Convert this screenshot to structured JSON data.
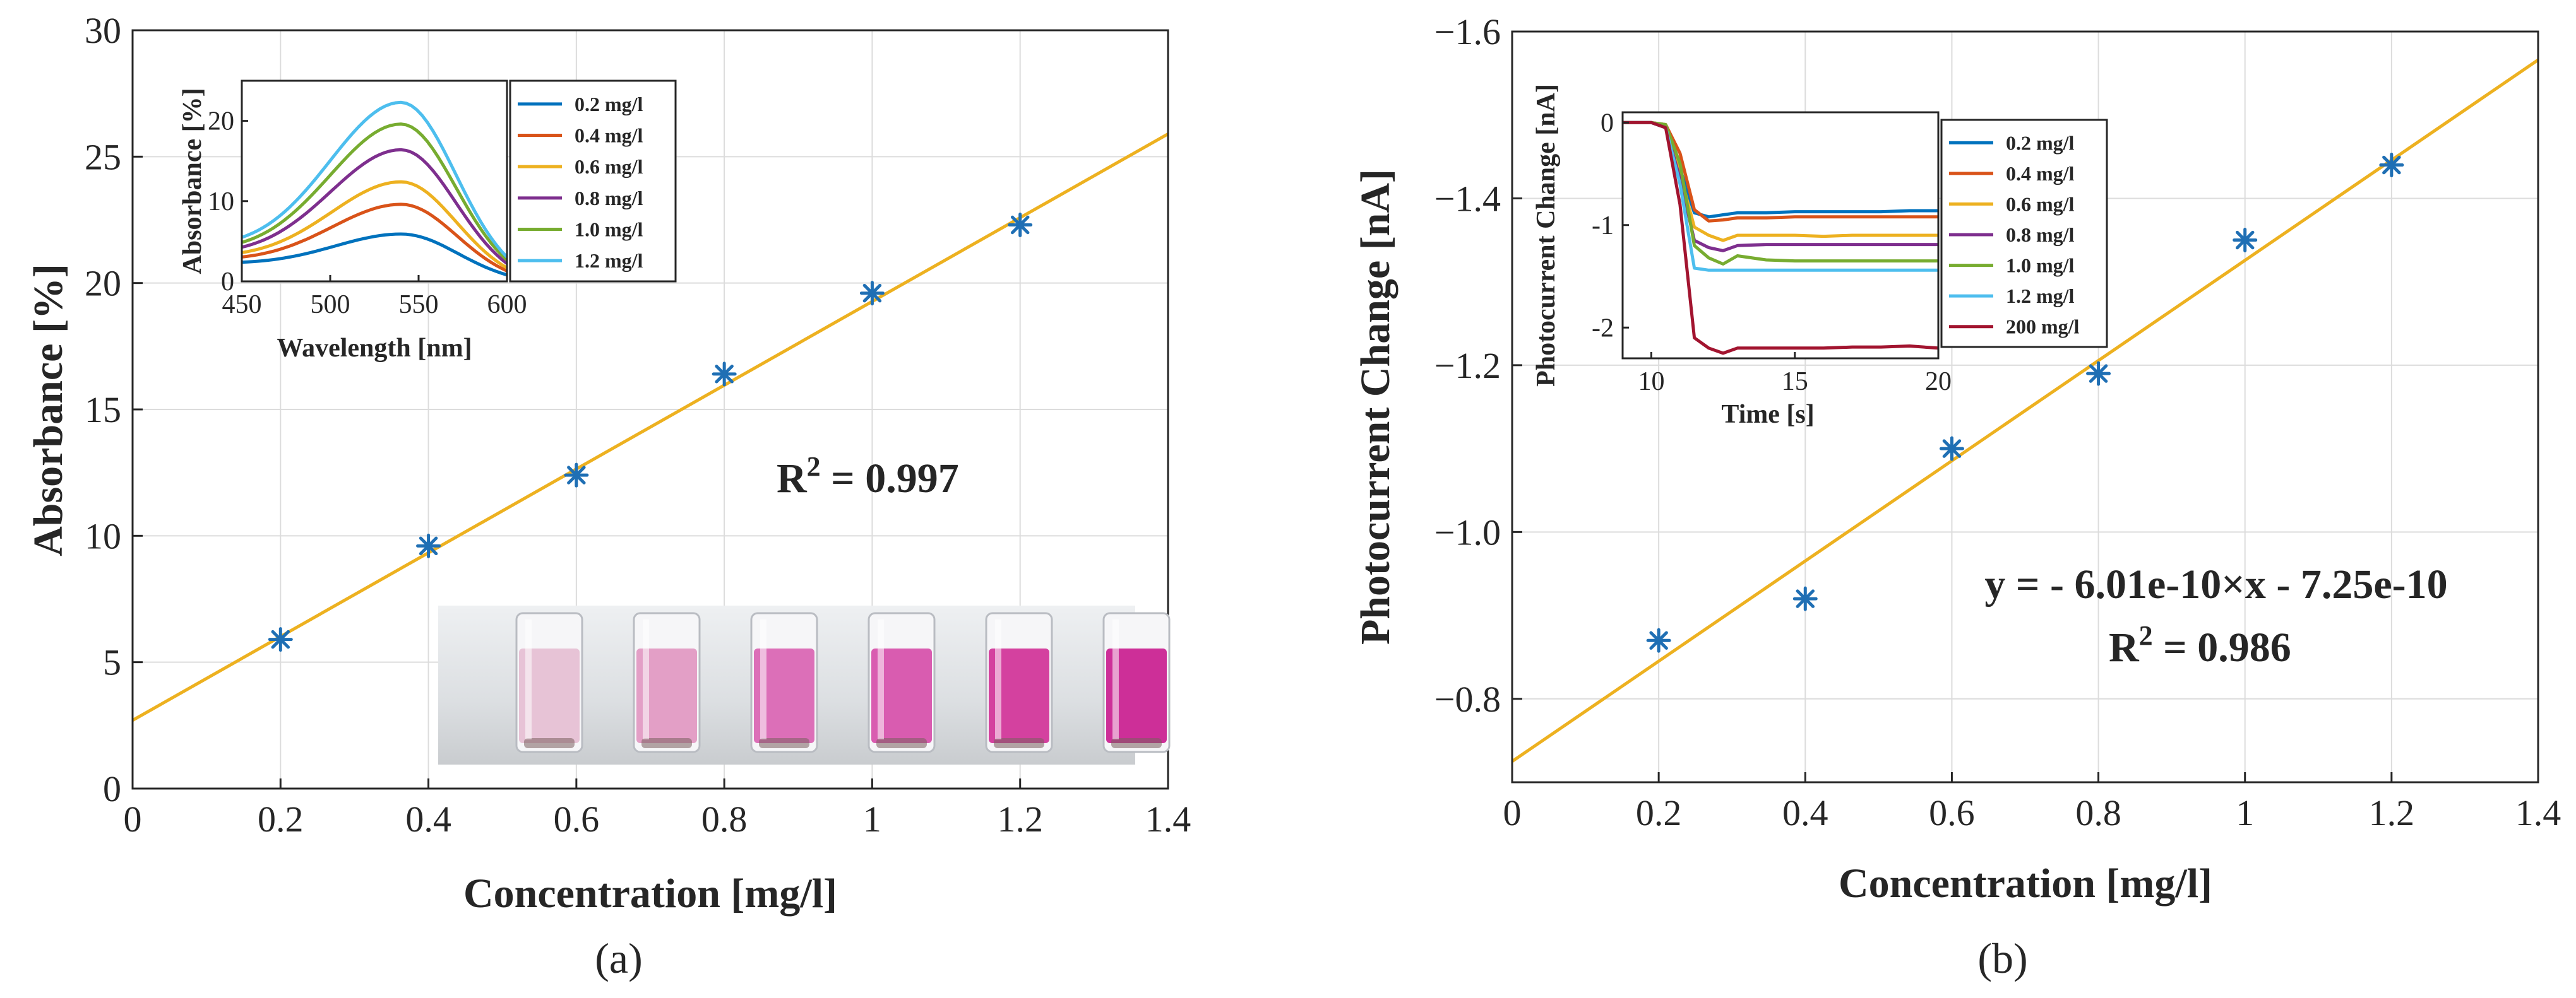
{
  "colors": {
    "marker": "#1f6fb4",
    "fit_line": "#edb120",
    "grid": "#dcdcdc",
    "axis": "#262626",
    "series": [
      "#0072bd",
      "#d95319",
      "#edb120",
      "#7e2f8e",
      "#77ac30",
      "#4dbeee",
      "#a2142f"
    ]
  },
  "chart_data": [
    {
      "id": "a",
      "type": "scatter",
      "subplot_label": "(a)",
      "xlabel": "Concentration [mg/l]",
      "ylabel": "Absorbance [%]",
      "xlim": [
        0,
        1.4
      ],
      "ylim": [
        0,
        30
      ],
      "xticks": [
        0,
        0.2,
        0.4,
        0.6,
        0.8,
        1,
        1.2,
        1.4
      ],
      "xtick_labels": [
        "0",
        "0.2",
        "0.4",
        "0.6",
        "0.8",
        "1",
        "1.2",
        "1.4"
      ],
      "yticks": [
        0,
        5,
        10,
        15,
        20,
        25,
        30
      ],
      "ytick_labels": [
        "0",
        "5",
        "10",
        "15",
        "20",
        "25",
        "30"
      ],
      "grid": true,
      "marker": "asterisk",
      "points": {
        "x": [
          0.2,
          0.4,
          0.6,
          0.8,
          1.0,
          1.2
        ],
        "y": [
          5.9,
          9.6,
          12.4,
          16.4,
          19.6,
          22.3
        ]
      },
      "fit": {
        "x": [
          0,
          1.4
        ],
        "y": [
          2.7,
          25.9
        ]
      },
      "annotation": {
        "text": "R",
        "sup": "2",
        "tail": " = 0.997"
      },
      "photo": {
        "description": "six vials of pink solutions of increasing concentration"
      },
      "inset": {
        "type": "line",
        "xlabel": "Wavelength [nm]",
        "ylabel": "Absorbance [%]",
        "xlim": [
          450,
          600
        ],
        "ylim": [
          0,
          25
        ],
        "xticks": [
          450,
          500,
          550,
          600
        ],
        "xtick_labels": [
          "450",
          "500",
          "550",
          "600"
        ],
        "yticks": [
          0,
          10,
          20
        ],
        "ytick_labels": [
          "0",
          "10",
          "20"
        ],
        "peak_nm": 540,
        "base_at_450": [
          2.0,
          2.3,
          2.6,
          2.9,
          3.2,
          3.6
        ],
        "series": [
          {
            "name": "0.2 mg/l",
            "peak": 5.9
          },
          {
            "name": "0.4 mg/l",
            "peak": 9.6
          },
          {
            "name": "0.6 mg/l",
            "peak": 12.4
          },
          {
            "name": "0.8 mg/l",
            "peak": 16.4
          },
          {
            "name": "1.0 mg/l",
            "peak": 19.6
          },
          {
            "name": "1.2 mg/l",
            "peak": 22.3
          }
        ]
      }
    },
    {
      "id": "b",
      "type": "scatter",
      "subplot_label": "(b)",
      "xlabel": "Concentration [mg/l]",
      "ylabel": "Photocurrent Change [nA]",
      "xlim": [
        0,
        1.4
      ],
      "ylim": [
        -0.7,
        -1.6
      ],
      "xticks": [
        0,
        0.2,
        0.4,
        0.6,
        0.8,
        1,
        1.2,
        1.4
      ],
      "xtick_labels": [
        "0",
        "0.2",
        "0.4",
        "0.6",
        "0.8",
        "1",
        "1.2",
        "1.4"
      ],
      "yticks": [
        -0.8,
        -1.0,
        -1.2,
        -1.4,
        -1.6
      ],
      "ytick_labels": [
        "−0.8",
        "−1.0",
        "−1.2",
        "−1.4",
        "−1.6"
      ],
      "grid": true,
      "marker": "asterisk",
      "points": {
        "x": [
          0.2,
          0.4,
          0.6,
          0.8,
          1.0,
          1.2
        ],
        "y": [
          -0.87,
          -0.92,
          -1.1,
          -1.19,
          -1.35,
          -1.44
        ]
      },
      "fit": {
        "x": [
          0,
          1.4
        ],
        "y": [
          -0.725,
          -1.566
        ]
      },
      "annotation": {
        "equation": "y = - 6.01e-10×x - 7.25e-10",
        "r_text": "R",
        "r_sup": "2",
        "r_tail": " = 0.986"
      },
      "inset": {
        "type": "line",
        "xlabel": "Time [s]",
        "ylabel": "Photocurrent Change [nA]",
        "xlim": [
          9,
          20
        ],
        "ylim": [
          -2.3,
          0.1
        ],
        "xticks": [
          10,
          15,
          20
        ],
        "xtick_labels": [
          "10",
          "15",
          "20"
        ],
        "yticks": [
          0,
          -1,
          -2
        ],
        "ytick_labels": [
          "0",
          "-1",
          "-2"
        ],
        "x": [
          9,
          10,
          10.5,
          11,
          11.5,
          12,
          12.5,
          13,
          14,
          15,
          16,
          17,
          18,
          19,
          20
        ],
        "series": [
          {
            "name": "0.2 mg/l",
            "values": [
              0,
              0,
              -0.05,
              -0.45,
              -0.88,
              -0.92,
              -0.9,
              -0.88,
              -0.88,
              -0.87,
              -0.87,
              -0.87,
              -0.87,
              -0.86,
              -0.86
            ]
          },
          {
            "name": "0.4 mg/l",
            "values": [
              0,
              0,
              -0.02,
              -0.3,
              -0.85,
              -0.96,
              -0.95,
              -0.93,
              -0.93,
              -0.92,
              -0.92,
              -0.92,
              -0.92,
              -0.92,
              -0.92
            ]
          },
          {
            "name": "0.6 mg/l",
            "values": [
              0,
              0,
              -0.05,
              -0.5,
              -1.02,
              -1.1,
              -1.15,
              -1.1,
              -1.1,
              -1.1,
              -1.11,
              -1.1,
              -1.1,
              -1.1,
              -1.1
            ]
          },
          {
            "name": "0.8 mg/l",
            "values": [
              0,
              0,
              -0.05,
              -0.55,
              -1.15,
              -1.22,
              -1.25,
              -1.2,
              -1.19,
              -1.19,
              -1.19,
              -1.19,
              -1.19,
              -1.19,
              -1.19
            ]
          },
          {
            "name": "1.0 mg/l",
            "values": [
              0,
              0,
              -0.02,
              -0.4,
              -1.2,
              -1.32,
              -1.38,
              -1.3,
              -1.34,
              -1.35,
              -1.35,
              -1.35,
              -1.35,
              -1.35,
              -1.35
            ]
          },
          {
            "name": "1.2 mg/l",
            "values": [
              0,
              0,
              -0.05,
              -0.6,
              -1.42,
              -1.44,
              -1.44,
              -1.44,
              -1.44,
              -1.44,
              -1.44,
              -1.44,
              -1.44,
              -1.44,
              -1.44
            ]
          },
          {
            "name": "200 mg/l",
            "values": [
              0,
              0,
              -0.05,
              -0.8,
              -2.1,
              -2.2,
              -2.25,
              -2.2,
              -2.2,
              -2.2,
              -2.2,
              -2.19,
              -2.19,
              -2.18,
              -2.2
            ]
          }
        ]
      }
    }
  ]
}
